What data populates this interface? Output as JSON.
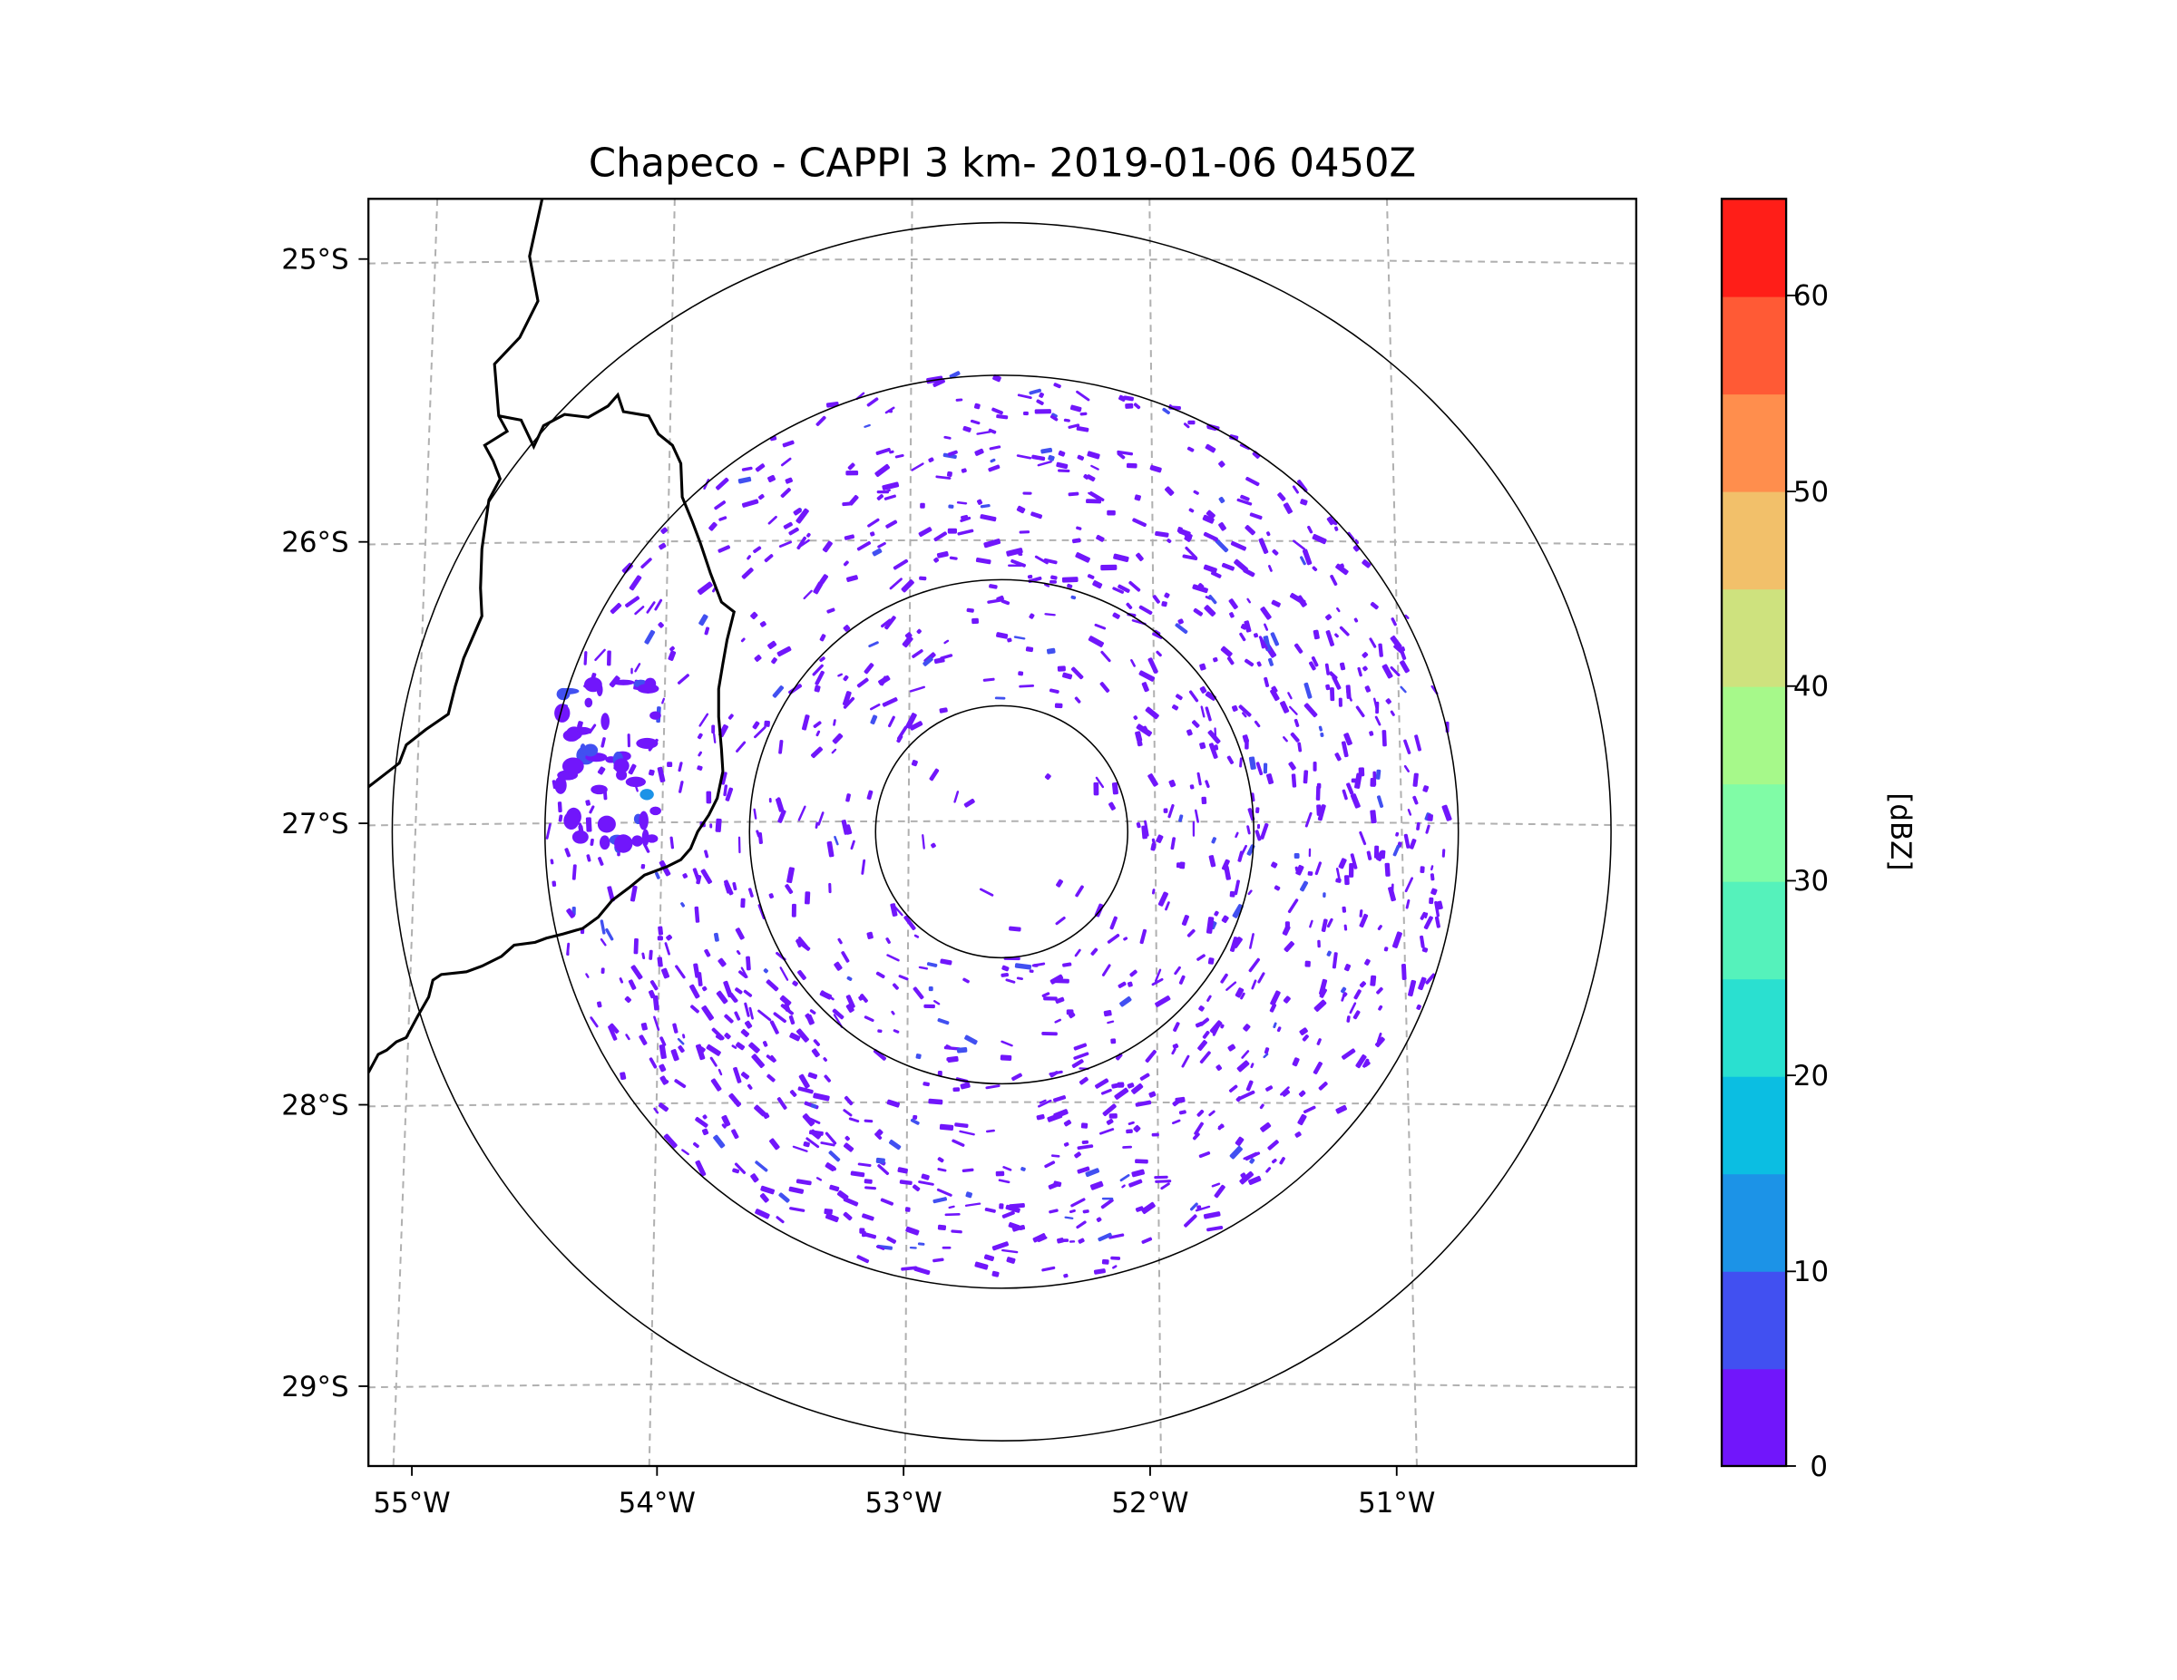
{
  "chart_data": {
    "type": "heatmap",
    "title": "Chapeco - CAPPI 3 km- 2019-01-06 0450Z",
    "xlabel": "",
    "ylabel": "",
    "x_ticks": [
      "55°W",
      "54°W",
      "53°W",
      "52°W",
      "51°W"
    ],
    "x_tick_values": [
      -55,
      -54,
      -53,
      -52,
      -51
    ],
    "y_ticks": [
      "25°S",
      "26°S",
      "27°S",
      "28°S",
      "29°S"
    ],
    "y_tick_values": [
      -25,
      -26,
      -27,
      -28,
      -29
    ],
    "xlim": [
      -55.17,
      -50.07
    ],
    "ylim": [
      -29.29,
      -24.78
    ],
    "grid": true,
    "radar_center": {
      "lon": -52.62,
      "lat": -27.02
    },
    "range_rings_km": [
      50,
      100,
      150,
      200
    ],
    "colorbar": {
      "label": "[dBZ]",
      "range": [
        0,
        65
      ],
      "ticks": [
        "0",
        "10",
        "20",
        "30",
        "40",
        "50",
        "60"
      ],
      "tick_values": [
        0,
        10,
        20,
        30,
        40,
        50,
        60
      ],
      "levels": [
        0,
        5,
        10,
        15,
        20,
        25,
        30,
        35,
        40,
        45,
        50,
        55,
        60,
        65
      ],
      "colors": [
        "#7116fb",
        "#4150f1",
        "#1c93e7",
        "#0bbee2",
        "#2ae0d0",
        "#55f2bb",
        "#80fca6",
        "#a6f98a",
        "#cee27e",
        "#f2c06a",
        "#ff8e4d",
        "#ff5a35",
        "#ff1e18"
      ]
    },
    "precipitation": {
      "dominant_range_dbz": [
        0,
        5
      ],
      "strongest_echo": {
        "lon": -54.05,
        "lat": -26.9,
        "dbz": 12
      },
      "western_cluster": {
        "lon": -54.2,
        "lat": -26.8
      }
    }
  }
}
